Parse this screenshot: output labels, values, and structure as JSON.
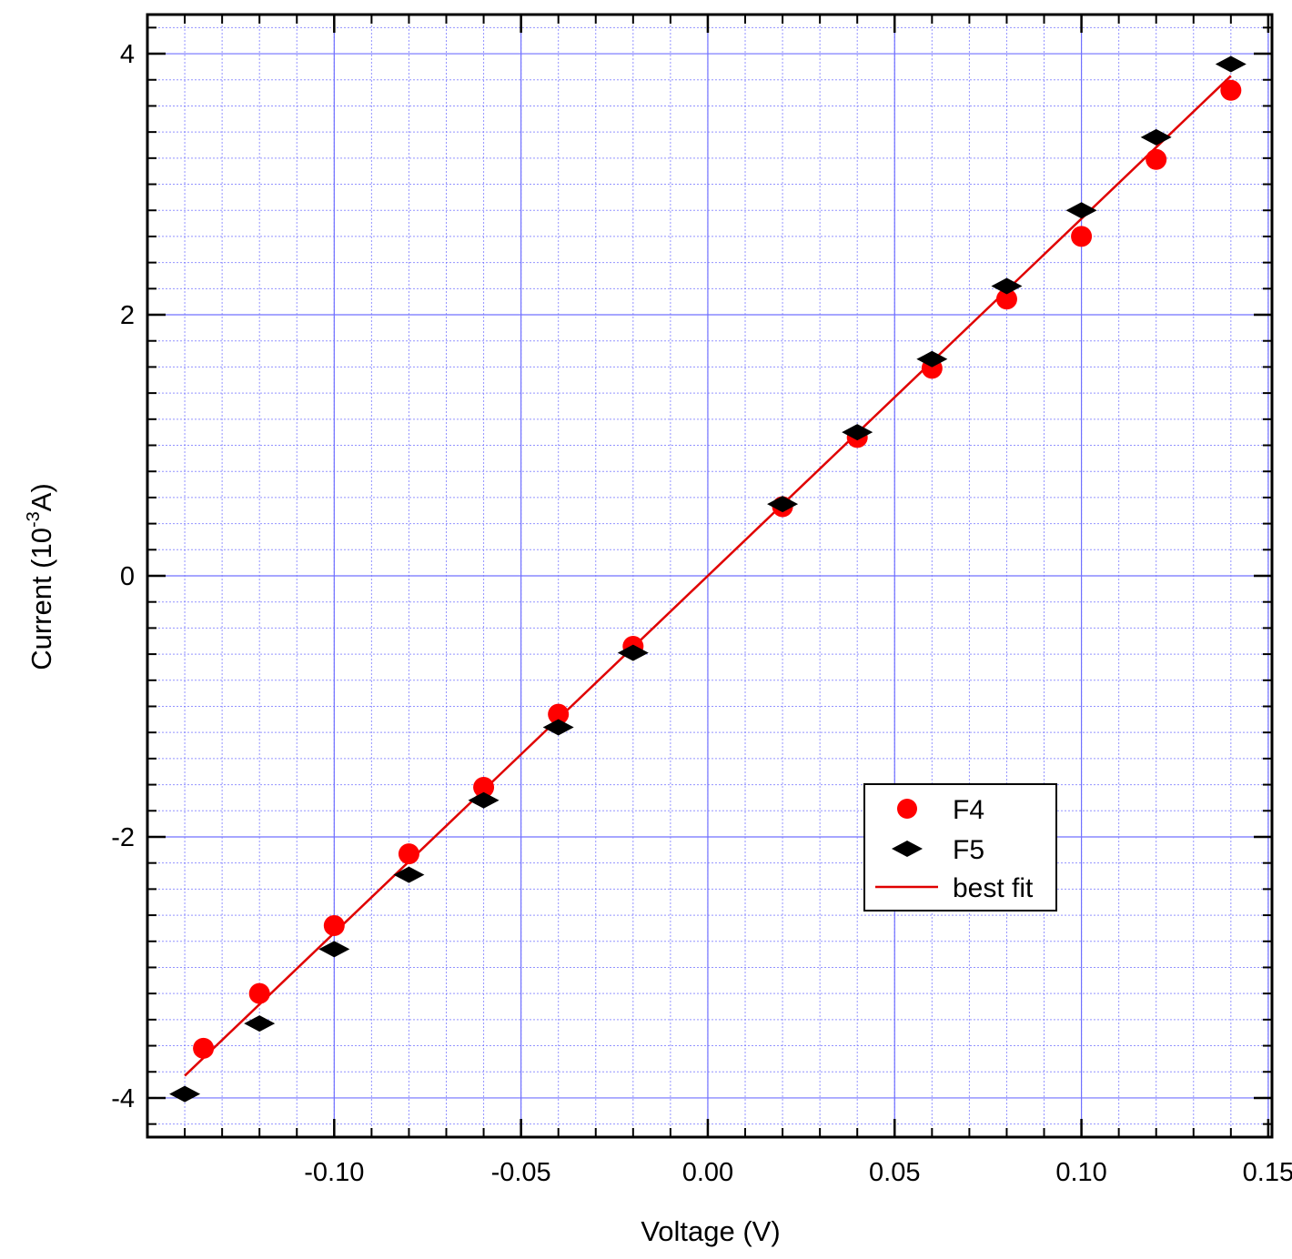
{
  "chart_data": {
    "type": "scatter",
    "xlabel": "Voltage (V)",
    "ylabel": {
      "prefix": "Current (10",
      "exponent": "-3",
      "suffix": "A)"
    },
    "xlim": [
      -0.15,
      0.151
    ],
    "ylim": [
      -4.3,
      4.3
    ],
    "x_ticks": [
      -0.1,
      -0.05,
      0.0,
      0.05,
      0.1,
      0.15
    ],
    "x_tick_labels": [
      "-0.10",
      "-0.05",
      "0.00",
      "0.05",
      "0.10",
      "0.15"
    ],
    "y_ticks": [
      -4,
      -2,
      0,
      2,
      4
    ],
    "y_tick_labels": [
      "-4",
      "-2",
      "0",
      "2",
      "4"
    ],
    "x_minor_step": 0.01,
    "y_minor_step": 0.2,
    "grid": true,
    "legend_position": "bottom-right",
    "colors": {
      "F4": "#ff0000",
      "F5": "#000000",
      "best_fit": "#e00000",
      "grid": "#7070ff"
    },
    "series": [
      {
        "name": "F4",
        "marker": "circle",
        "x": [
          -0.135,
          -0.12,
          -0.1,
          -0.08,
          -0.06,
          -0.04,
          -0.02,
          0.02,
          0.04,
          0.06,
          0.08,
          0.1,
          0.12,
          0.14
        ],
        "y": [
          -3.62,
          -3.2,
          -2.68,
          -2.13,
          -1.62,
          -1.06,
          -0.54,
          0.53,
          1.06,
          1.59,
          2.12,
          2.6,
          3.19,
          3.72
        ]
      },
      {
        "name": "F5",
        "marker": "diamond",
        "x": [
          -0.14,
          -0.12,
          -0.1,
          -0.08,
          -0.06,
          -0.04,
          -0.02,
          0.02,
          0.04,
          0.06,
          0.08,
          0.1,
          0.12,
          0.14
        ],
        "y": [
          -3.97,
          -3.43,
          -2.86,
          -2.29,
          -1.72,
          -1.16,
          -0.59,
          0.55,
          1.1,
          1.66,
          2.22,
          2.8,
          3.36,
          3.92
        ]
      },
      {
        "name": "best fit",
        "marker": "line",
        "x": [
          -0.14,
          0.14
        ],
        "y": [
          -3.83,
          3.83
        ]
      }
    ]
  }
}
